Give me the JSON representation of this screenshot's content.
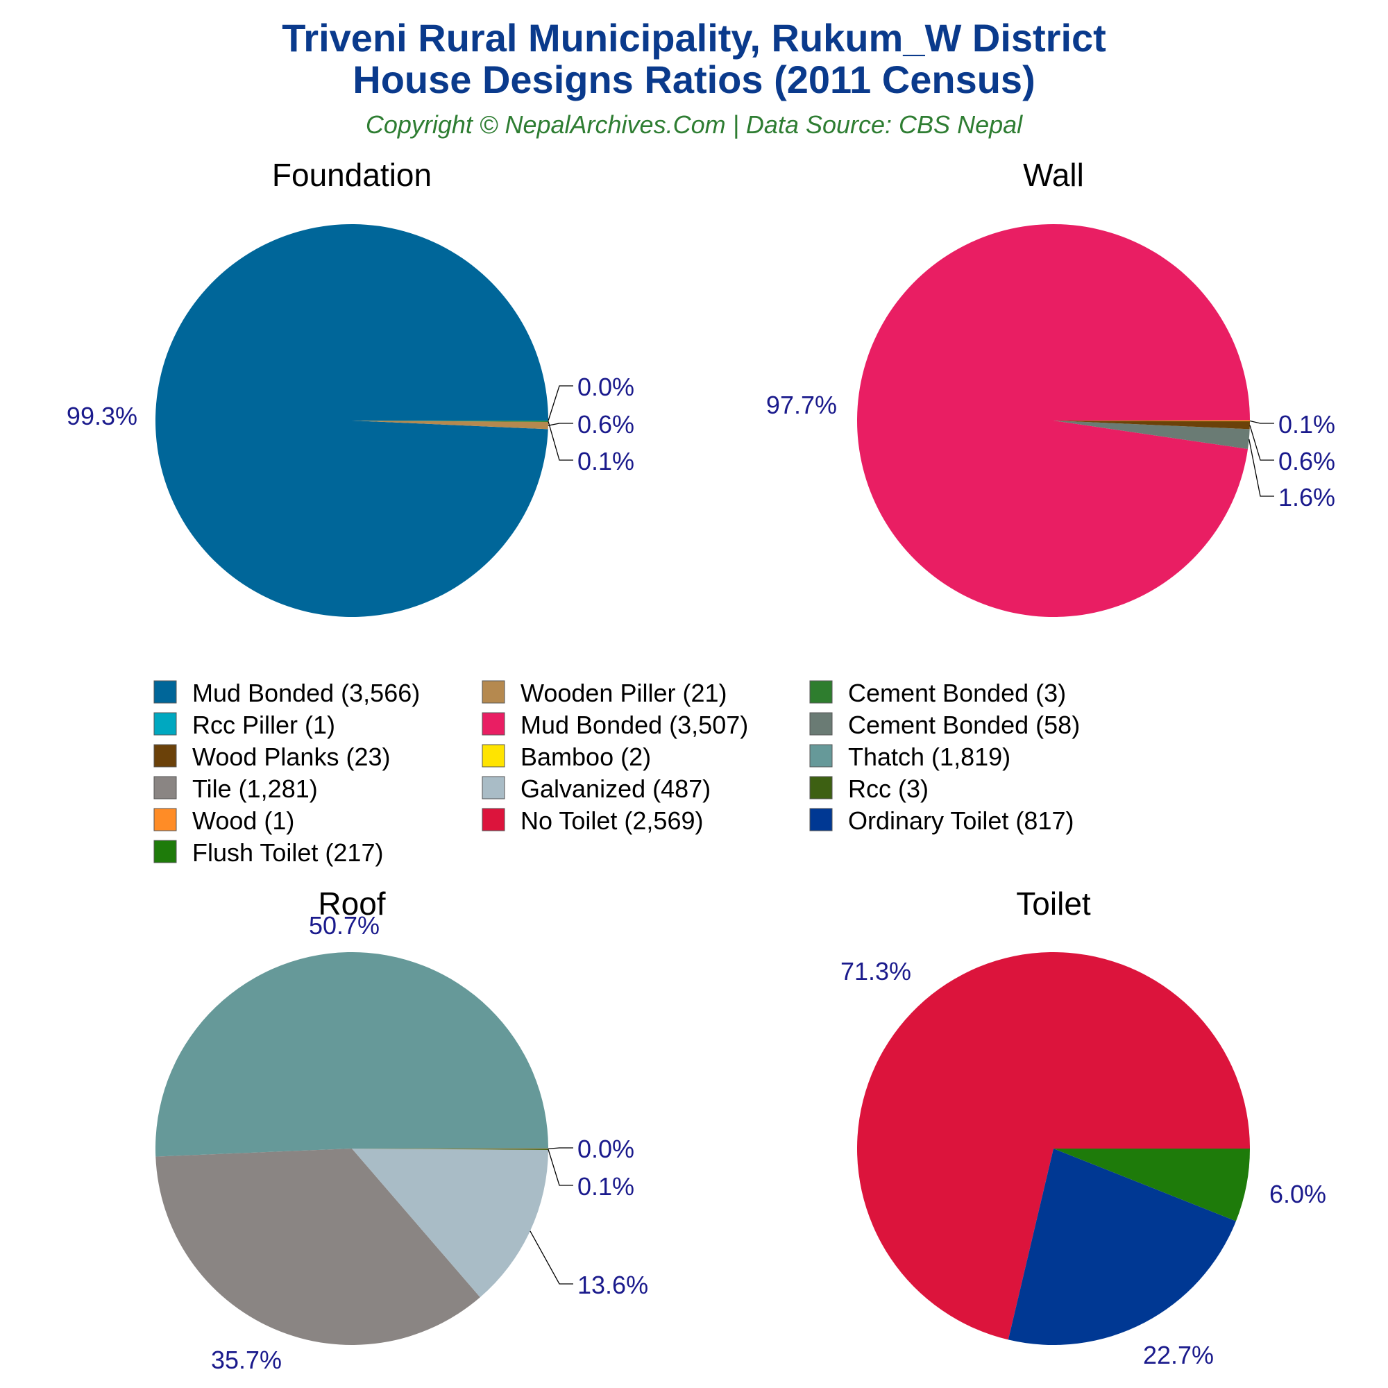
{
  "header": {
    "title_line1": "Triveni Rural Municipality, Rukum_W District",
    "title_line2": "House Designs Ratios (2011 Census)",
    "subtitle": "Copyright © NepalArchives.Com | Data Source: CBS Nepal"
  },
  "chart_data": [
    {
      "type": "pie",
      "title": "Foundation",
      "slices": [
        {
          "label": "Mud Bonded",
          "value": 3566,
          "pct": "99.3%",
          "color": "#006699"
        },
        {
          "label": "Wooden Piller",
          "value": 21,
          "pct": "0.6%",
          "color": "#b5894f"
        },
        {
          "label": "Cement Bonded",
          "value": 3,
          "pct": "0.1%",
          "color": "#2e7d2e"
        },
        {
          "label": "Rcc Piller",
          "value": 1,
          "pct": "0.0%",
          "color": "#00a8c0"
        }
      ]
    },
    {
      "type": "pie",
      "title": "Wall",
      "slices": [
        {
          "label": "Mud Bonded",
          "value": 3507,
          "pct": "97.7%",
          "color": "#e91e63"
        },
        {
          "label": "Cement Bonded",
          "value": 58,
          "pct": "1.6%",
          "color": "#6a7b74"
        },
        {
          "label": "Wood Planks",
          "value": 23,
          "pct": "0.6%",
          "color": "#6b4109"
        },
        {
          "label": "Bamboo",
          "value": 2,
          "pct": "0.1%",
          "color": "#ffe400"
        }
      ]
    },
    {
      "type": "pie",
      "title": "Roof",
      "slices": [
        {
          "label": "Thatch",
          "value": 1819,
          "pct": "50.7%",
          "color": "#669999"
        },
        {
          "label": "Tile",
          "value": 1281,
          "pct": "35.7%",
          "color": "#8a8583"
        },
        {
          "label": "Galvanized",
          "value": 487,
          "pct": "13.6%",
          "color": "#a9bcc6"
        },
        {
          "label": "Rcc",
          "value": 3,
          "pct": "0.1%",
          "color": "#3d6012"
        },
        {
          "label": "Wood",
          "value": 1,
          "pct": "0.0%",
          "color": "#ff8c26"
        }
      ]
    },
    {
      "type": "pie",
      "title": "Toilet",
      "slices": [
        {
          "label": "No Toilet",
          "value": 2569,
          "pct": "71.3%",
          "color": "#dc143c"
        },
        {
          "label": "Ordinary Toilet",
          "value": 817,
          "pct": "22.7%",
          "color": "#003893"
        },
        {
          "label": "Flush Toilet",
          "value": 217,
          "pct": "6.0%",
          "color": "#1e7b0a"
        }
      ]
    }
  ],
  "legend": [
    {
      "text": "Mud Bonded (3,566)",
      "color": "#006699"
    },
    {
      "text": "Rcc Piller (1)",
      "color": "#00a8c0"
    },
    {
      "text": "Wood Planks (23)",
      "color": "#6b4109"
    },
    {
      "text": "Tile (1,281)",
      "color": "#8a8583"
    },
    {
      "text": "Wood (1)",
      "color": "#ff8c26"
    },
    {
      "text": "Flush Toilet (217)",
      "color": "#1e7b0a"
    },
    {
      "text": "Wooden Piller (21)",
      "color": "#b5894f"
    },
    {
      "text": "Mud Bonded (3,507)",
      "color": "#e91e63"
    },
    {
      "text": "Bamboo (2)",
      "color": "#ffe400"
    },
    {
      "text": "Galvanized (487)",
      "color": "#a9bcc6"
    },
    {
      "text": "No Toilet (2,569)",
      "color": "#dc143c"
    },
    {
      "text": "Cement Bonded (3)",
      "color": "#2e7d2e"
    },
    {
      "text": "Cement Bonded (58)",
      "color": "#6a7b74"
    },
    {
      "text": "Thatch (1,819)",
      "color": "#669999"
    },
    {
      "text": "Rcc (3)",
      "color": "#3d6012"
    },
    {
      "text": "Ordinary Toilet (817)",
      "color": "#003893"
    }
  ]
}
